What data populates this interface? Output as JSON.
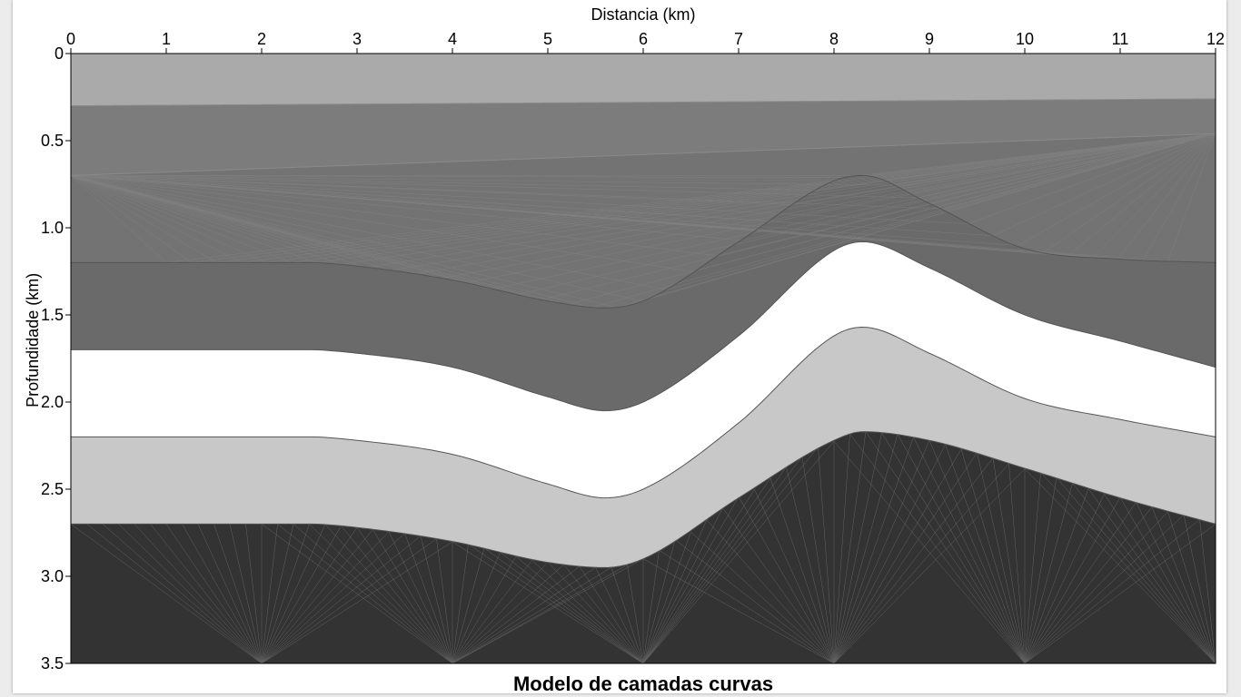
{
  "chart_data": {
    "type": "area",
    "title": "Modelo de camadas curvas",
    "xlabel": "Distancia (km)",
    "ylabel": "Profundidade (km)",
    "xlim": [
      0,
      12
    ],
    "ylim": [
      0,
      3.5
    ],
    "y_inverted": true,
    "x_axis_position": "top",
    "title_position": "bottom",
    "grid": false,
    "x_ticks": [
      0,
      1,
      2,
      3,
      4,
      5,
      6,
      7,
      8,
      9,
      10,
      11,
      12
    ],
    "y_ticks": [
      0,
      0.5,
      1.0,
      1.5,
      2.0,
      2.5,
      3.0,
      3.5
    ],
    "x_tick_labels": [
      "0",
      "1",
      "2",
      "3",
      "4",
      "5",
      "6",
      "7",
      "8",
      "9",
      "10",
      "11",
      "12"
    ],
    "y_tick_labels": [
      "0",
      "0.5",
      "1.0",
      "1.5",
      "2.0",
      "2.5",
      "3.0",
      "3.5"
    ],
    "interfaces": [
      {
        "x": [
          0,
          12
        ],
        "depth": [
          0.3,
          0.26
        ]
      },
      {
        "x": [
          0,
          12
        ],
        "depth": [
          0.7,
          0.46
        ]
      },
      {
        "x": [
          0,
          2.5,
          3,
          4,
          5,
          5.6,
          6,
          7,
          8,
          8.3,
          9,
          10,
          11,
          12
        ],
        "depth": [
          1.2,
          1.2,
          1.22,
          1.3,
          1.42,
          1.46,
          1.42,
          1.08,
          0.73,
          0.7,
          0.86,
          1.12,
          1.18,
          1.2
        ]
      },
      {
        "x": [
          0,
          2.5,
          3,
          4,
          5,
          5.6,
          6,
          7,
          8,
          8.3,
          9,
          10,
          11,
          12
        ],
        "depth": [
          1.7,
          1.7,
          1.72,
          1.8,
          1.97,
          2.05,
          2.0,
          1.62,
          1.13,
          1.08,
          1.23,
          1.5,
          1.65,
          1.8
        ]
      },
      {
        "x": [
          0,
          2.5,
          3,
          4,
          5,
          5.6,
          6,
          7,
          8,
          8.3,
          9,
          10,
          11,
          12
        ],
        "depth": [
          2.2,
          2.2,
          2.22,
          2.3,
          2.47,
          2.55,
          2.5,
          2.12,
          1.62,
          1.57,
          1.72,
          1.98,
          2.1,
          2.2
        ]
      },
      {
        "x": [
          0,
          2.5,
          3,
          4,
          5,
          5.6,
          6,
          7,
          8,
          8.3,
          9,
          10,
          11,
          12
        ],
        "depth": [
          2.7,
          2.7,
          2.72,
          2.8,
          2.92,
          2.95,
          2.9,
          2.55,
          2.22,
          2.17,
          2.22,
          2.38,
          2.55,
          2.7
        ]
      }
    ],
    "layer_colors": [
      "#aaaaaa",
      "#7c7c7c",
      "#737373",
      "#6a6a6a",
      "#ffffff",
      "#c8c8c8",
      "#333333"
    ]
  }
}
